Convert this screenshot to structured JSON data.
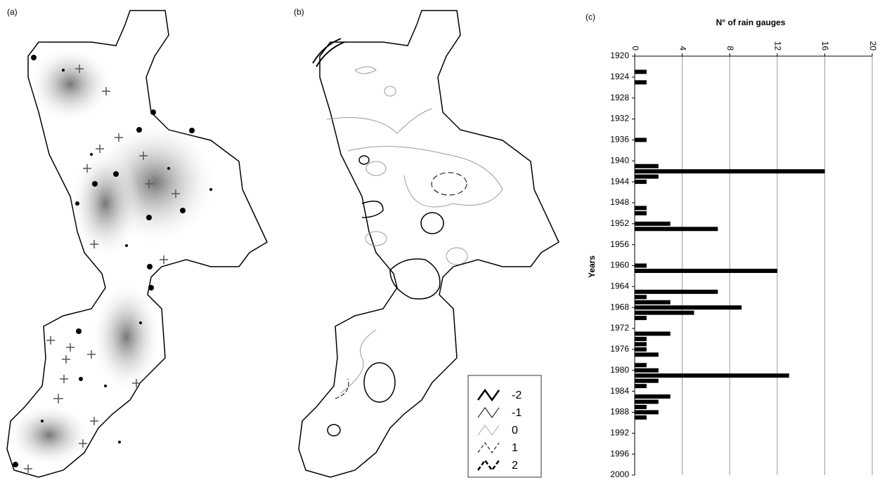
{
  "panel_labels": [
    "(a)",
    "(b)",
    "(c)"
  ],
  "map_legend": [
    "-2",
    "-1",
    "0",
    "1",
    "2"
  ],
  "chart_data": {
    "type": "hbar",
    "title": "N° of rain gauges",
    "y_label": "Years",
    "y": [
      1923,
      1925,
      1936,
      1941,
      1942,
      1943,
      1944,
      1949,
      1950,
      1952,
      1953,
      1960,
      1961,
      1965,
      1966,
      1967,
      1968,
      1969,
      1970,
      1973,
      1974,
      1975,
      1976,
      1977,
      1979,
      1980,
      1981,
      1982,
      1983,
      1985,
      1986,
      1987,
      1988,
      1989
    ],
    "values": [
      1,
      1,
      1,
      2,
      16,
      2,
      1,
      1,
      1,
      3,
      7,
      1,
      12,
      7,
      1,
      3,
      9,
      5,
      1,
      3,
      1,
      1,
      1,
      2,
      1,
      2,
      13,
      2,
      1,
      3,
      2,
      1,
      2,
      1
    ],
    "color": "#000000",
    "xlim": [
      0,
      20
    ],
    "xticks": [
      0,
      4,
      8,
      12,
      16,
      20
    ],
    "ylim": [
      1920,
      2000
    ],
    "yticks": [
      1920,
      1924,
      1928,
      1932,
      1936,
      1940,
      1944,
      1948,
      1952,
      1956,
      1960,
      1964,
      1968,
      1972,
      1976,
      1980,
      1984,
      1988,
      1992,
      1996,
      2000
    ],
    "grid": true
  }
}
